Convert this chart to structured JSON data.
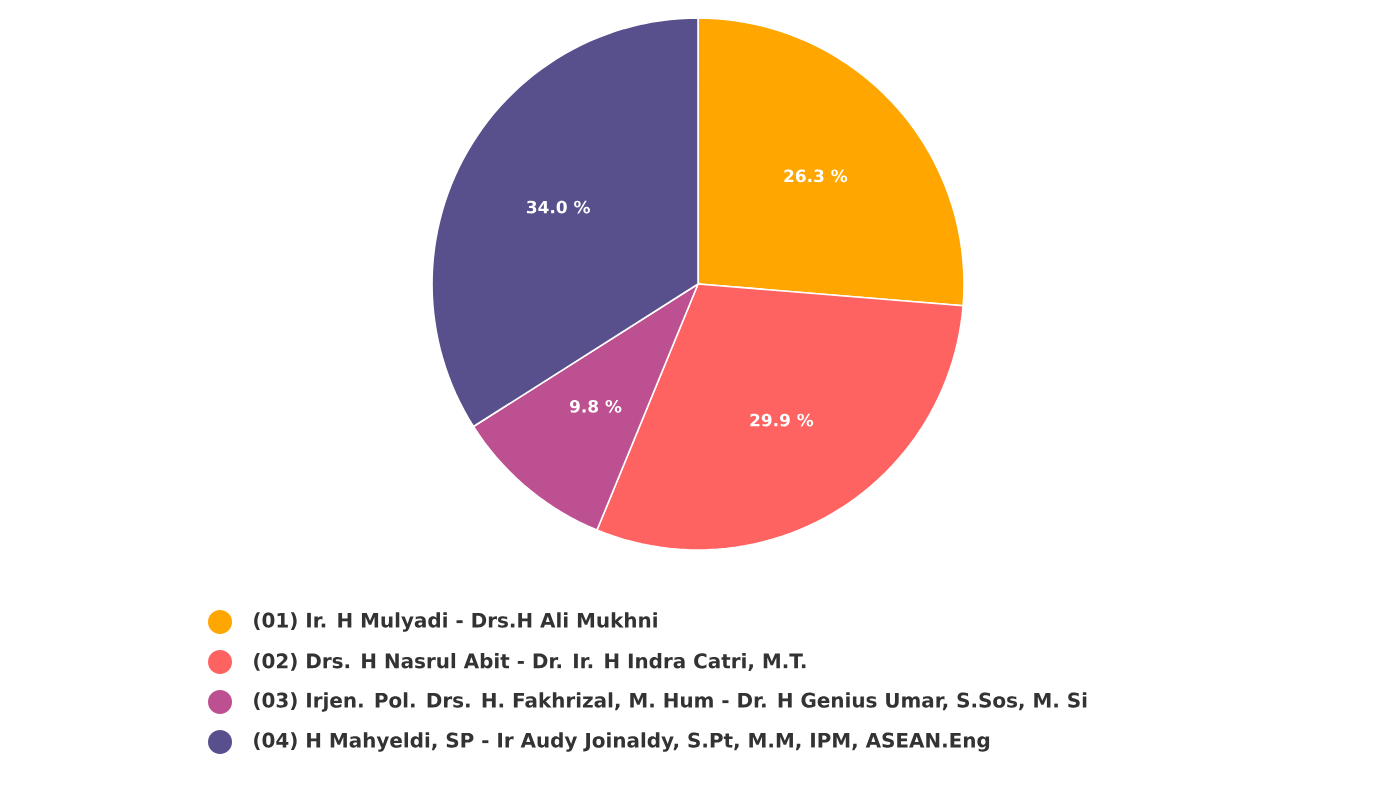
{
  "chart_data": {
    "type": "pie",
    "categories": [
      "(01) Ir. H Mulyadi - Drs.H Ali Mukhni",
      "(02) Drs. H Nasrul Abit - Dr. Ir. H Indra Catri, M.T.",
      "(03) Irjen. Pol. Drs. H. Fakhrizal, M. Hum - Dr. H Genius Umar, S.Sos, M. Si",
      "(04) H Mahyeldi, SP - Ir Audy Joinaldy, S.Pt, M.M, IPM, ASEAN.Eng"
    ],
    "values": [
      26.3,
      29.9,
      9.8,
      34.0
    ],
    "value_labels": [
      "26.3 %",
      "29.9 %",
      "9.8 %",
      "34.0 %"
    ],
    "colors": [
      "#ffa600",
      "#ff6361",
      "#bc5090",
      "#58508d"
    ],
    "legend": "bottom"
  }
}
